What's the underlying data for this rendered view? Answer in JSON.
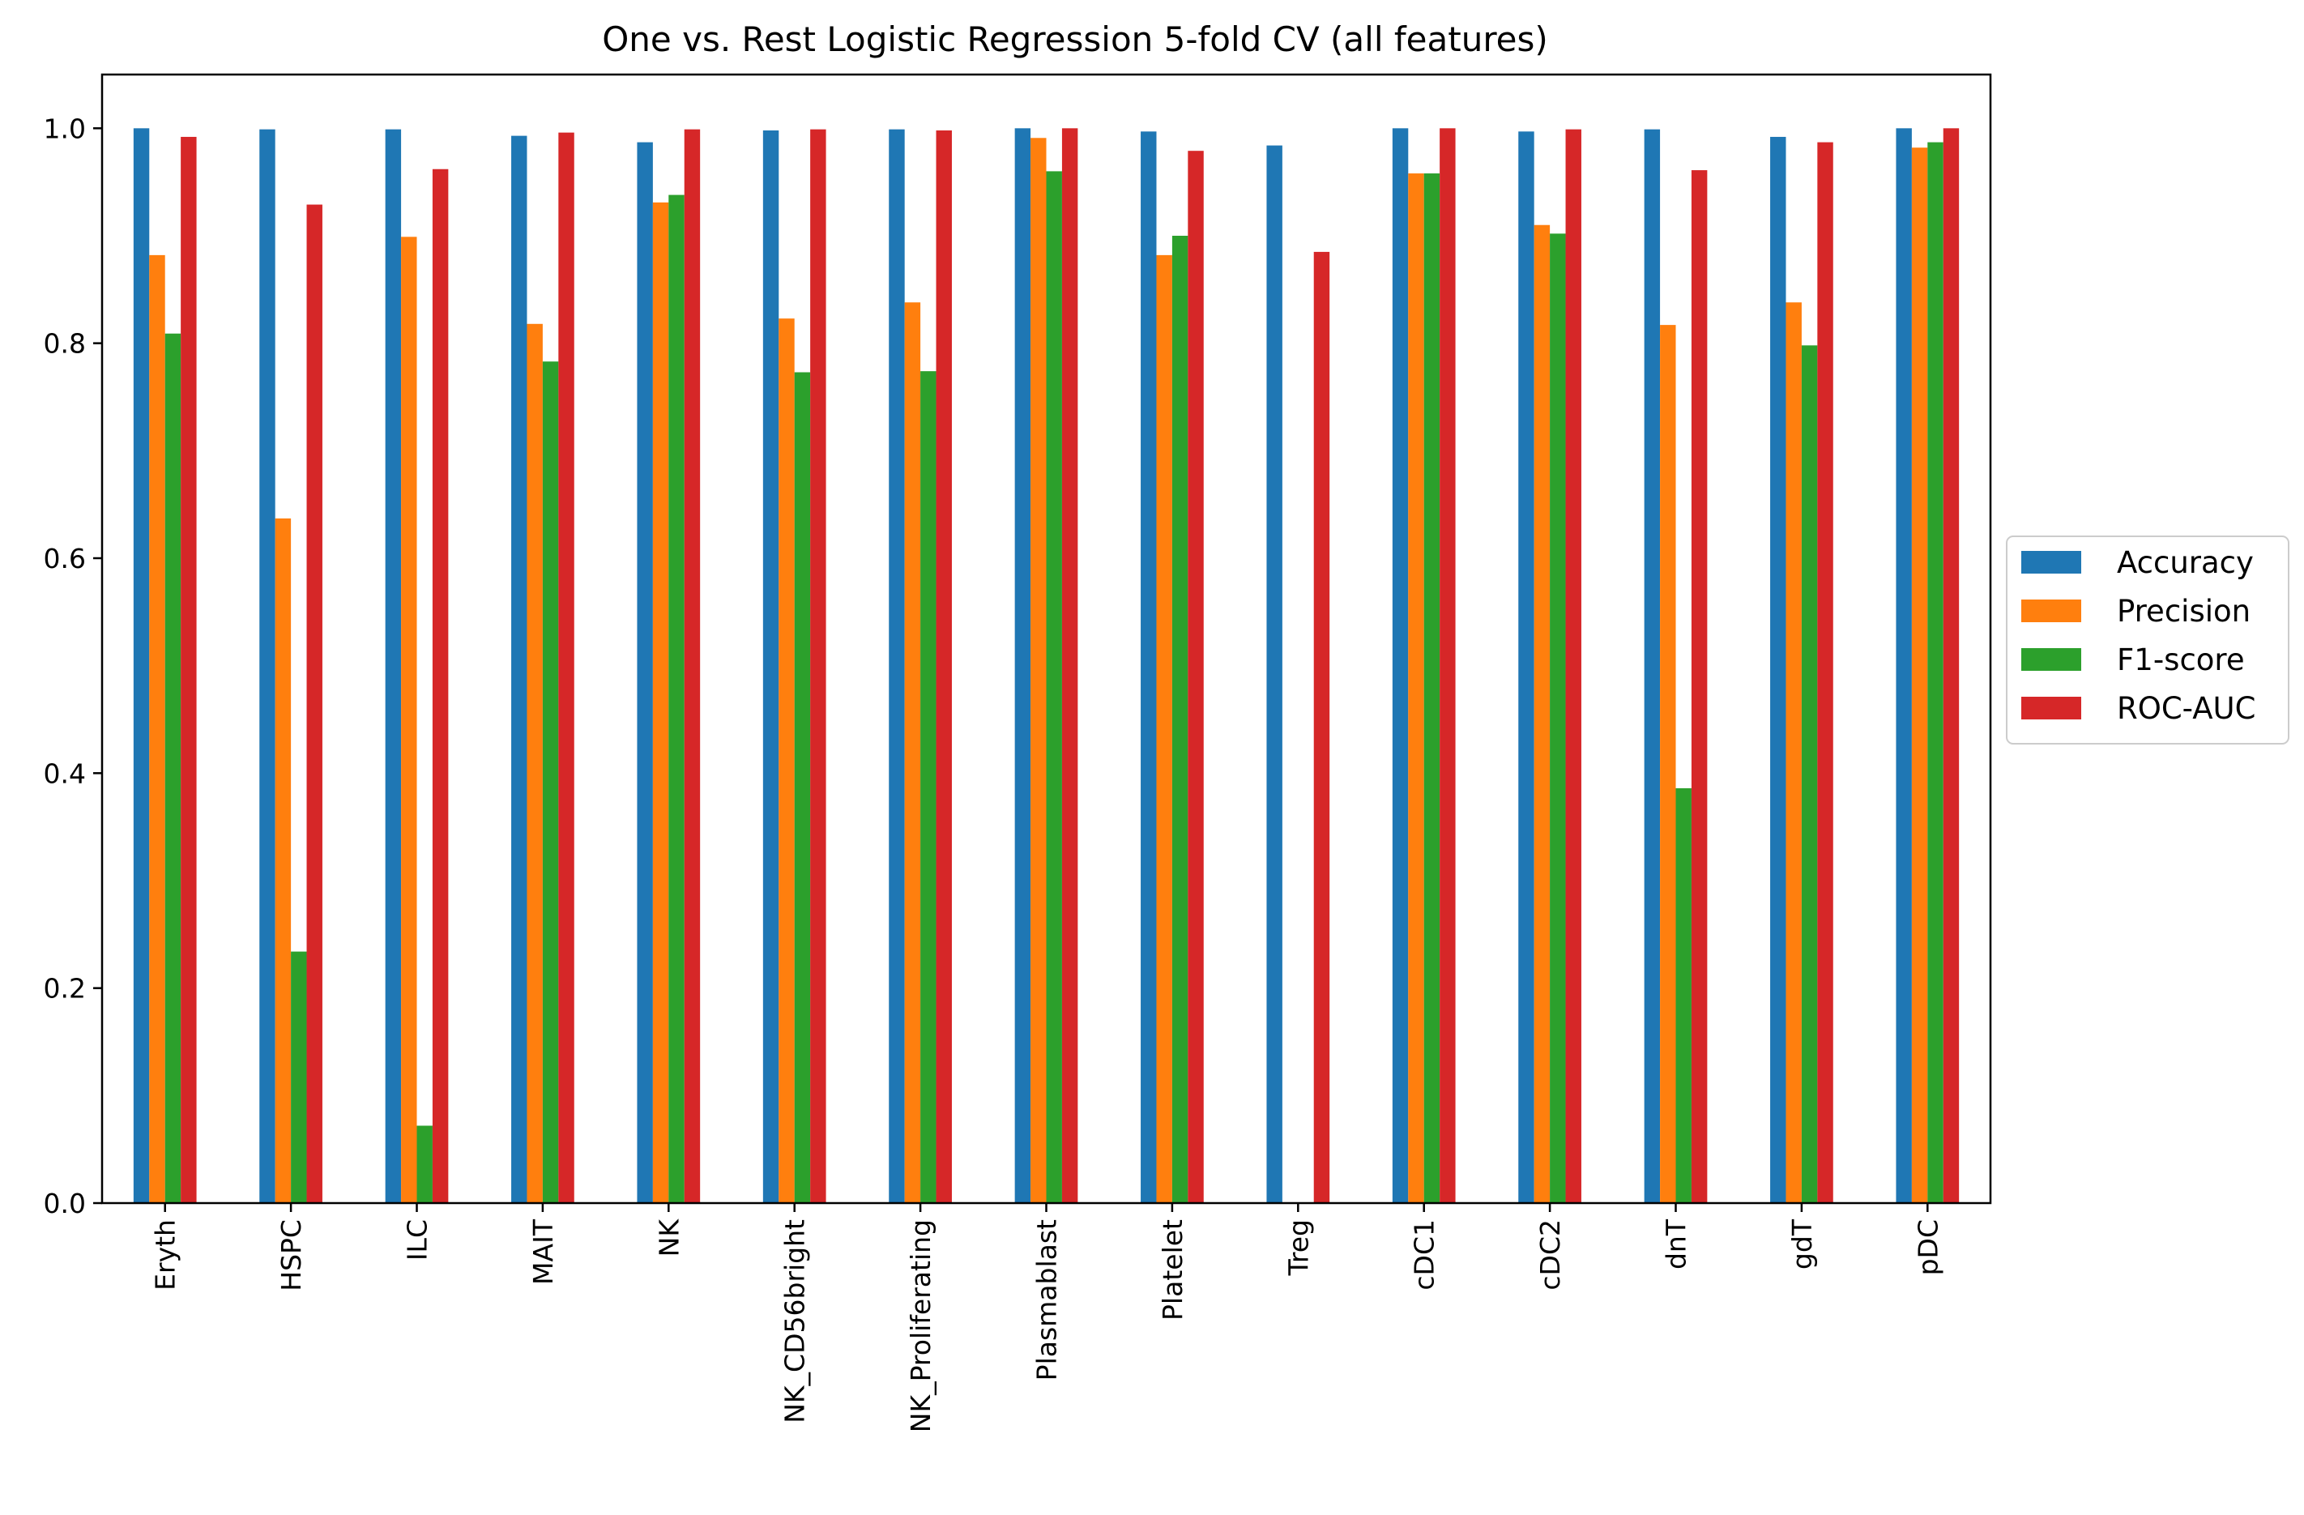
{
  "chart_data": {
    "type": "bar",
    "title": "One vs. Rest Logistic Regression 5-fold CV (all features)",
    "xlabel": "",
    "ylabel": "",
    "ylim": [
      0,
      1.05
    ],
    "yticks": [
      "0.0",
      "0.2",
      "0.4",
      "0.6",
      "0.8",
      "1.0"
    ],
    "grid": false,
    "legend_position": "center-right outside",
    "categories": [
      "Eryth",
      "HSPC",
      "ILC",
      "MAIT",
      "NK",
      "NK_CD56bright",
      "NK_Proliferating",
      "Plasmablast",
      "Platelet",
      "Treg",
      "cDC1",
      "cDC2",
      "dnT",
      "gdT",
      "pDC"
    ],
    "series": [
      {
        "name": "Accuracy",
        "color": "#1f77b4",
        "values": [
          1.0,
          0.999,
          0.999,
          0.993,
          0.987,
          0.998,
          0.999,
          1.0,
          0.997,
          0.984,
          1.0,
          0.997,
          0.999,
          0.992,
          1.0
        ]
      },
      {
        "name": "Precision",
        "color": "#ff7f0e",
        "values": [
          0.882,
          0.637,
          0.899,
          0.818,
          0.931,
          0.823,
          0.838,
          0.991,
          0.882,
          0.0,
          0.958,
          0.91,
          0.817,
          0.838,
          0.982
        ]
      },
      {
        "name": "F1-score",
        "color": "#2ca02c",
        "values": [
          0.809,
          0.234,
          0.072,
          0.783,
          0.938,
          0.773,
          0.774,
          0.96,
          0.9,
          0.0,
          0.958,
          0.902,
          0.386,
          0.798,
          0.987
        ]
      },
      {
        "name": "ROC-AUC",
        "color": "#d62728",
        "values": [
          0.992,
          0.929,
          0.962,
          0.996,
          0.999,
          0.999,
          0.998,
          1.0,
          0.979,
          0.885,
          1.0,
          0.999,
          0.961,
          0.987,
          1.0
        ]
      }
    ]
  }
}
